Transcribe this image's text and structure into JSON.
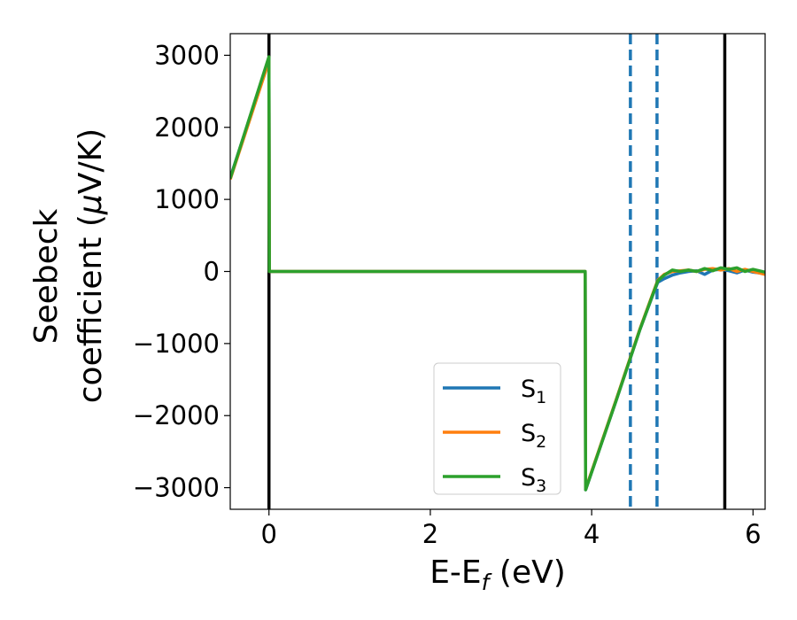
{
  "chart_data": {
    "type": "line",
    "xlabel": {
      "main": "E-E",
      "sub": "f",
      "tail": " (eV)"
    },
    "ylabel": {
      "line1": "Seebeck",
      "line2": "coefficient  (",
      "mu": "μ",
      "unit": "V/K)"
    },
    "xlim": [
      -0.48,
      6.15
    ],
    "ylim": [
      -3300,
      3300
    ],
    "xticks": [
      0,
      2,
      4,
      6
    ],
    "yticks": [
      3000,
      2000,
      1000,
      0,
      -1000,
      -2000,
      -3000
    ],
    "ytick_labels": [
      "3000",
      "2000",
      "1000",
      "0",
      "−1000",
      "−2000",
      "−3000"
    ],
    "grid": false,
    "legend_position": "lower-right",
    "series": [
      {
        "name": "S",
        "sub": "1",
        "color": "#1f77b4",
        "x": [
          -0.48,
          0,
          0.005,
          3.92,
          3.925,
          4.3,
          4.6,
          4.75,
          4.82,
          4.9,
          5.0,
          5.1,
          5.2,
          5.3,
          5.4,
          5.5,
          5.6,
          5.7,
          5.8,
          5.9,
          6.0,
          6.15
        ],
        "y": [
          1300,
          2950,
          0,
          0,
          -3030,
          -1800,
          -800,
          -350,
          -150,
          -100,
          -50,
          -20,
          0,
          10,
          -40,
          20,
          30,
          10,
          -20,
          20,
          -10,
          -30
        ]
      },
      {
        "name": "S",
        "sub": "2",
        "color": "#ff7f0e",
        "x": [
          -0.48,
          0,
          0.005,
          3.92,
          3.925,
          4.3,
          4.6,
          4.75,
          4.82,
          4.9,
          5.0,
          5.1,
          5.2,
          5.3,
          5.4,
          5.5,
          5.6,
          5.7,
          5.8,
          5.9,
          6.0,
          6.15
        ],
        "y": [
          1280,
          2920,
          0,
          0,
          -3020,
          -1790,
          -790,
          -330,
          -120,
          -40,
          0,
          10,
          20,
          0,
          30,
          40,
          20,
          40,
          0,
          30,
          0,
          -40
        ]
      },
      {
        "name": "S",
        "sub": "3",
        "color": "#2ca02c",
        "x": [
          -0.48,
          0,
          0.005,
          3.92,
          3.925,
          4.3,
          4.6,
          4.75,
          4.82,
          4.9,
          5.0,
          5.1,
          5.2,
          5.3,
          5.4,
          5.5,
          5.6,
          5.7,
          5.8,
          5.9,
          6.0,
          6.15
        ],
        "y": [
          1290,
          2980,
          0,
          0,
          -3030,
          -1800,
          -800,
          -340,
          -130,
          -50,
          20,
          0,
          20,
          0,
          40,
          10,
          50,
          30,
          50,
          0,
          30,
          -10
        ]
      }
    ],
    "vertical_lines": [
      {
        "x": 0,
        "style": "solid",
        "color": "#000000"
      },
      {
        "x": 5.65,
        "style": "solid",
        "color": "#000000"
      },
      {
        "x": 4.48,
        "style": "dashed",
        "color": "#1f77b4"
      },
      {
        "x": 4.81,
        "style": "dashed",
        "color": "#1f77b4"
      }
    ]
  }
}
